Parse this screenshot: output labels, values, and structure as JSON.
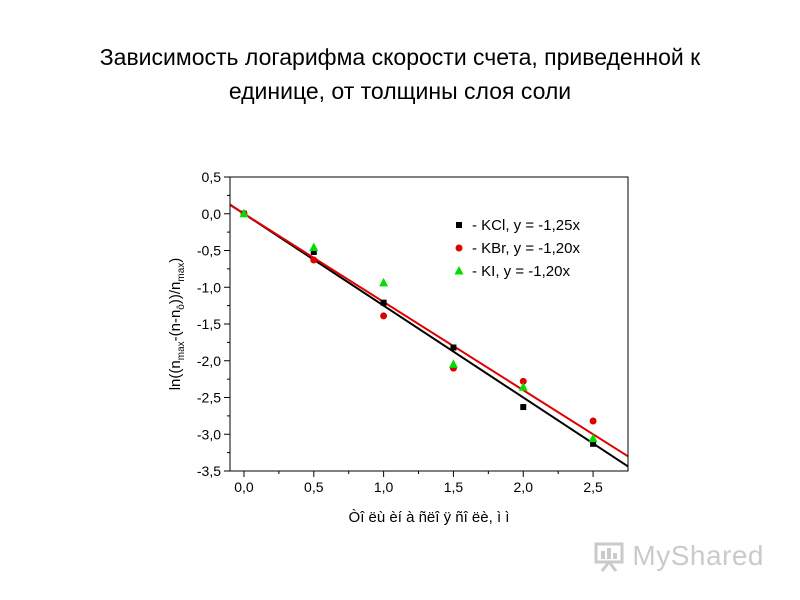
{
  "slide": {
    "title_line1": "Зависимость логарифма скорости счета, приведенной к",
    "title_line2": "единице, от толщины слоя соли"
  },
  "watermark": {
    "text": "MyShared",
    "icon": "presentation-board-icon"
  },
  "chart_data": {
    "type": "scatter",
    "title": "",
    "xlabel": "Òî ëù èí à ñëî ÿ ñî ëè, ì ì",
    "ylabel_parts": [
      "ln((n",
      "max",
      "-(n-n",
      "ô",
      "))/n",
      "max",
      ")"
    ],
    "xlim": [
      -0.1,
      2.75
    ],
    "ylim": [
      -3.5,
      0.5
    ],
    "xticks": [
      0.0,
      0.5,
      1.0,
      1.5,
      2.0,
      2.5
    ],
    "xtick_labels": [
      "0,0",
      "0,5",
      "1,0",
      "1,5",
      "2,0",
      "2,5"
    ],
    "yticks": [
      0.5,
      0.0,
      -0.5,
      -1.0,
      -1.5,
      -2.0,
      -2.5,
      -3.0,
      -3.5
    ],
    "ytick_labels": [
      "0,5",
      "0,0",
      "-0,5",
      "-1,0",
      "-1,5",
      "-2,0",
      "-2,5",
      "-3,0",
      "-3,5"
    ],
    "legend_position": "top-right",
    "series": [
      {
        "name": "KCl",
        "legend_label": "- KCl,  y = -1,25x",
        "marker": "square",
        "color": "#000000",
        "x": [
          0.0,
          0.5,
          1.0,
          1.5,
          2.0,
          2.5
        ],
        "y": [
          0.0,
          -0.52,
          -1.21,
          -1.82,
          -2.63,
          -3.13
        ],
        "fit_slope": -1.25
      },
      {
        "name": "KBr",
        "legend_label": "- KBr,  y = -1,20x",
        "marker": "circle",
        "color": "#e00000",
        "x": [
          0.0,
          0.5,
          1.0,
          1.5,
          2.0,
          2.5
        ],
        "y": [
          0.0,
          -0.63,
          -1.39,
          -2.1,
          -2.28,
          -2.82
        ],
        "fit_slope": -1.2
      },
      {
        "name": "KI",
        "legend_label": "- KI,   y = -1,20x",
        "marker": "triangle",
        "color": "#00dd00",
        "x": [
          0.0,
          0.5,
          1.0,
          1.5,
          2.0,
          2.5
        ],
        "y": [
          0.0,
          -0.46,
          -0.94,
          -2.05,
          -2.36,
          -3.06
        ],
        "fit_slope": -1.2
      }
    ],
    "fit_lines": [
      {
        "color": "#000000",
        "x": [
          -0.1,
          2.75
        ],
        "y": [
          0.125,
          -3.438
        ]
      },
      {
        "color": "#e00000",
        "x": [
          -0.1,
          2.75
        ],
        "y": [
          0.12,
          -3.3
        ]
      }
    ]
  }
}
